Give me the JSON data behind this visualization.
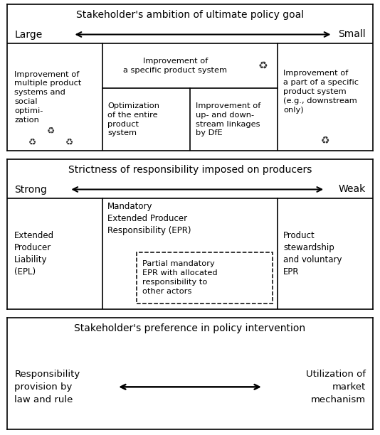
{
  "fig_width": 5.34,
  "fig_height": 6.12,
  "dpi": 100,
  "bg_color": "#ffffff",
  "border_color": "#000000",
  "text_color": "#000000",
  "panel1": {
    "title": "Stakeholder's ambition of ultimate policy goal",
    "left_label": "Large",
    "right_label": "Small",
    "col1_text": "Improvement of\nmultiple product\nsystems and\nsocial\noptimi-\nzation",
    "col2_top_text": "Improvement of\na specific product system",
    "col2a_text": "Optimization\nof the entire\nproduct\nsystem",
    "col2b_text": "Improvement of\nup- and down-\nstream linkages\nby DfE",
    "col3_text": "Improvement of\na part of a specific\nproduct system\n(e.g., downstream\nonly)"
  },
  "panel2": {
    "title": "Strictness of responsibility imposed on producers",
    "left_label": "Strong",
    "right_label": "Weak",
    "col1_text": "Extended\nProducer\nLiability\n(EPL)",
    "col2_top_text": "Mandatory\nExtended Producer\nResponsibility (EPR)",
    "col2_sub_text": "Partial mandatory\nEPR with allocated\nresponsibility to\nother actors",
    "col3_text": "Product\nstewardship\nand voluntary\nEPR"
  },
  "panel3": {
    "title": "Stakeholder's preference in policy intervention",
    "left_text": "Responsibility\nprovision by\nlaw and rule",
    "right_text": "Utilization of\nmarket\nmechanism"
  }
}
